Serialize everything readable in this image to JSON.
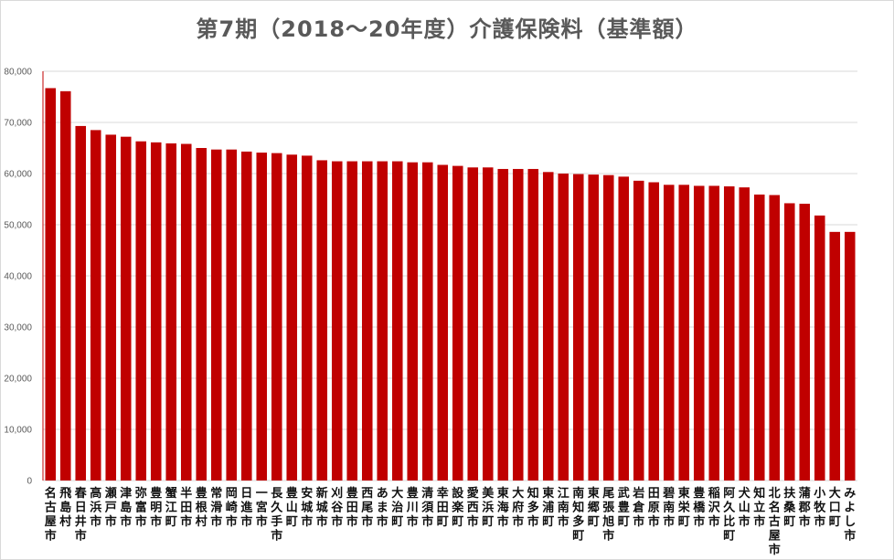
{
  "chart_data": {
    "type": "bar",
    "title": "第7期（2018～20年度）介護保険料（基準額）",
    "xlabel": "",
    "ylabel": "",
    "ylim": [
      0,
      80000
    ],
    "yticks": [
      "0",
      "10,000",
      "20,000",
      "30,000",
      "40,000",
      "50,000",
      "60,000",
      "70,000",
      "80,000"
    ],
    "grid": true,
    "legend": "none",
    "color": "#c00000",
    "categories": [
      "名古屋市",
      "飛島村",
      "春日井市",
      "高浜市",
      "瀬戸市",
      "津島市",
      "弥富市",
      "豊明市",
      "蟹江町",
      "半田市",
      "豊根村",
      "常滑市",
      "岡崎市",
      "日進市",
      "一宮市",
      "長久手市",
      "豊山町",
      "安城市",
      "新城市",
      "刈谷市",
      "豊田市",
      "西尾市",
      "あま市",
      "大治町",
      "豊川市",
      "清須市",
      "幸田町",
      "設楽町",
      "愛西市",
      "美浜町",
      "東海市",
      "大府市",
      "知多市",
      "東浦町",
      "江南市",
      "南知多町",
      "東郷町",
      "尾張旭市",
      "武豊町",
      "岩倉市",
      "田原市",
      "碧南市",
      "東栄町",
      "豊橋市",
      "稲沢市",
      "阿久比町",
      "犬山市",
      "知立市",
      "北名古屋市",
      "扶桑町",
      "蒲郡市",
      "小牧市",
      "大口町",
      "みよし市"
    ],
    "values": [
      76700,
      76100,
      69300,
      68500,
      67600,
      67200,
      66300,
      66100,
      65900,
      65800,
      65000,
      64700,
      64700,
      64300,
      64100,
      64000,
      63700,
      63500,
      62600,
      62400,
      62400,
      62400,
      62400,
      62400,
      62200,
      62200,
      61700,
      61500,
      61200,
      61200,
      60900,
      60900,
      60900,
      60300,
      60000,
      59900,
      59800,
      59700,
      59400,
      58600,
      58300,
      57800,
      57800,
      57600,
      57600,
      57500,
      57300,
      55900,
      55800,
      54200,
      54100,
      51800,
      48600,
      48600
    ]
  }
}
